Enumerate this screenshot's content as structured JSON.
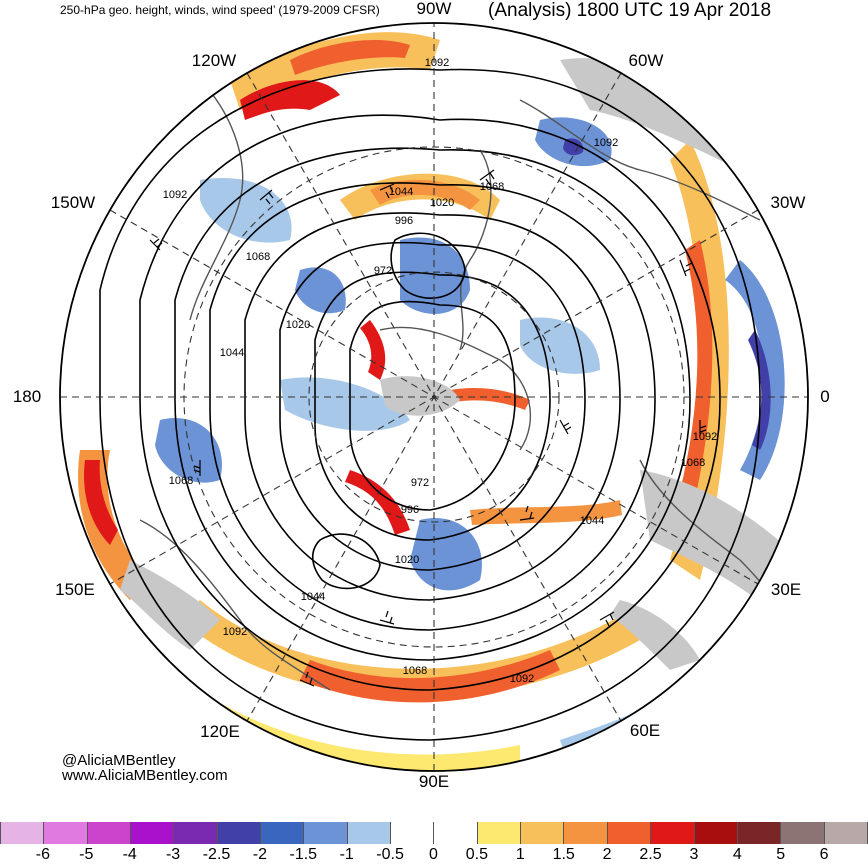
{
  "title": {
    "left": "250-hPa geo. height, winds, wind speed’ (1979-2009 CFSR)",
    "right": "(Analysis) 1800 UTC 19 Apr 2018"
  },
  "longitude_labels": [
    {
      "text": "90W",
      "key": "top"
    },
    {
      "text": "60W",
      "key": "top-right"
    },
    {
      "text": "30W",
      "key": "right-upper"
    },
    {
      "text": "0",
      "key": "right"
    },
    {
      "text": "30E",
      "key": "right-lower"
    },
    {
      "text": "60E",
      "key": "bottom-right"
    },
    {
      "text": "90E",
      "key": "bottom"
    },
    {
      "text": "120E",
      "key": "bottom-left"
    },
    {
      "text": "150E",
      "key": "left-lower"
    },
    {
      "text": "180",
      "key": "left"
    },
    {
      "text": "150W",
      "key": "left-upper"
    },
    {
      "text": "120W",
      "key": "top-left"
    }
  ],
  "contour_labels": [
    "1092",
    "1092",
    "1092",
    "1068",
    "1044",
    "1020",
    "996",
    "972",
    "1068",
    "1020",
    "1044",
    "1068",
    "1092",
    "1068",
    "972",
    "996",
    "1020",
    "1044",
    "1044",
    "1092",
    "1068",
    "1092"
  ],
  "credit": {
    "handle": "@AliciaMBentley",
    "website": "www.AliciaMBentley.com"
  },
  "colorbar": {
    "colors": [
      "#e6b3e6",
      "#e07ae0",
      "#cc44cc",
      "#aa11cc",
      "#7a2ab0",
      "#4040a8",
      "#3a66c0",
      "#6b93d6",
      "#a8c8ea",
      "#ffffff",
      "#ffffff",
      "#fde870",
      "#f8c05a",
      "#f59440",
      "#f0602e",
      "#e01818",
      "#a80e0e",
      "#7a2626",
      "#8c7474",
      "#b8a8a8"
    ],
    "ticks": [
      "-6",
      "-5",
      "-4",
      "-3",
      "-2.5",
      "-2",
      "-1.5",
      "-1",
      "-0.5",
      "0",
      "0.5",
      "1",
      "1.5",
      "2",
      "2.5",
      "3",
      "4",
      "5",
      "6"
    ]
  },
  "colors": {
    "land": "#c8c8c8",
    "coast": "#555555",
    "contour": "#000000",
    "anomaly_pos": "#f8c05a",
    "anomaly_neg": "#6b93d6"
  }
}
